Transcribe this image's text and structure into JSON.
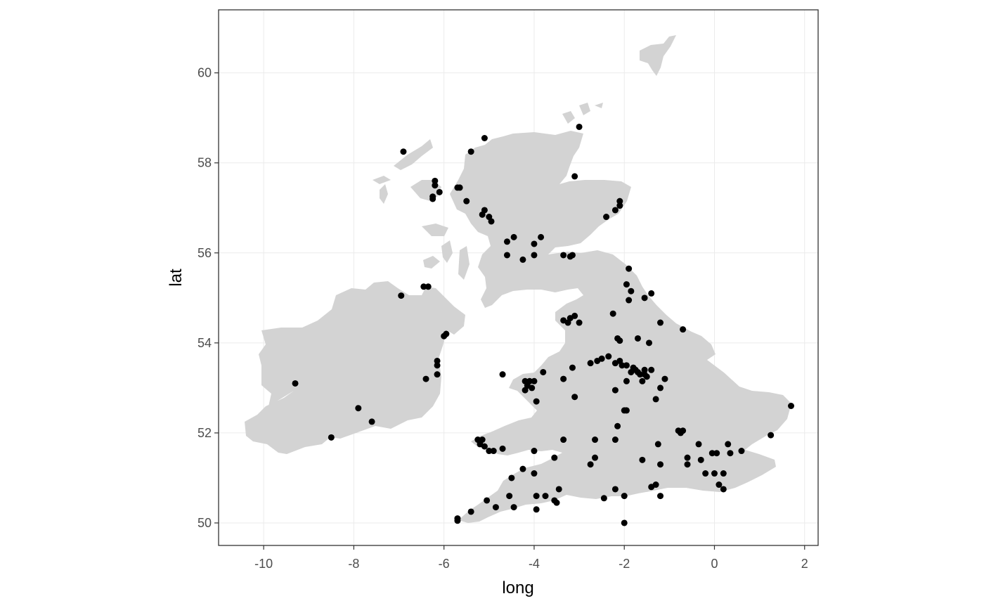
{
  "chart_data": {
    "type": "scatter",
    "title": "",
    "xlabel": "long",
    "ylabel": "lat",
    "xlim": [
      -11,
      2.3
    ],
    "ylim": [
      49.5,
      61.4
    ],
    "x_ticks": [
      -10,
      -8,
      -6,
      -4,
      -2,
      0,
      2
    ],
    "y_ticks": [
      50,
      52,
      54,
      56,
      58,
      60
    ],
    "x_tick_labels": [
      "-10",
      "-8",
      "-6",
      "-4",
      "-2",
      "0",
      "2"
    ],
    "y_tick_labels": [
      "50",
      "52",
      "54",
      "56",
      "58",
      "60"
    ],
    "grid": true,
    "background_polygons": "land outline of Great Britain and Ireland",
    "colors": {
      "land": "#d3d3d3",
      "points": "#000000",
      "panel_border": "#333333",
      "grid": "#ebebeb"
    },
    "points": [
      [
        -6.9,
        58.25
      ],
      [
        -5.4,
        58.25
      ],
      [
        -5.1,
        58.55
      ],
      [
        -3.1,
        57.7
      ],
      [
        -3.0,
        58.8
      ],
      [
        -6.2,
        57.6
      ],
      [
        -6.2,
        57.5
      ],
      [
        -6.1,
        57.35
      ],
      [
        -6.25,
        57.25
      ],
      [
        -6.25,
        57.2
      ],
      [
        -5.7,
        57.45
      ],
      [
        -5.65,
        57.45
      ],
      [
        -5.5,
        57.15
      ],
      [
        -5.1,
        56.95
      ],
      [
        -5.0,
        56.8
      ],
      [
        -5.15,
        56.85
      ],
      [
        -4.95,
        56.7
      ],
      [
        -4.45,
        56.35
      ],
      [
        -4.6,
        56.25
      ],
      [
        -3.85,
        56.35
      ],
      [
        -4.0,
        56.2
      ],
      [
        -4.6,
        55.95
      ],
      [
        -4.0,
        55.95
      ],
      [
        -4.25,
        55.85
      ],
      [
        -3.35,
        55.95
      ],
      [
        -3.15,
        55.95
      ],
      [
        -3.2,
        55.92
      ],
      [
        -2.2,
        56.95
      ],
      [
        -2.1,
        57.15
      ],
      [
        -2.1,
        57.05
      ],
      [
        -2.4,
        56.8
      ],
      [
        -6.95,
        55.05
      ],
      [
        -6.45,
        55.25
      ],
      [
        -6.35,
        55.25
      ],
      [
        -5.95,
        54.2
      ],
      [
        -6.0,
        54.15
      ],
      [
        -6.15,
        53.6
      ],
      [
        -6.15,
        53.5
      ],
      [
        -6.15,
        53.3
      ],
      [
        -6.4,
        53.2
      ],
      [
        -9.3,
        53.1
      ],
      [
        -7.9,
        52.55
      ],
      [
        -7.6,
        52.25
      ],
      [
        -8.5,
        51.9
      ],
      [
        -1.9,
        55.65
      ],
      [
        -1.95,
        55.3
      ],
      [
        -1.85,
        55.15
      ],
      [
        -1.9,
        54.95
      ],
      [
        -1.55,
        55.0
      ],
      [
        -1.4,
        55.1
      ],
      [
        -2.25,
        54.65
      ],
      [
        -3.1,
        54.6
      ],
      [
        -3.2,
        54.55
      ],
      [
        -3.35,
        54.5
      ],
      [
        -3.25,
        54.45
      ],
      [
        -3.0,
        54.45
      ],
      [
        -1.2,
        54.45
      ],
      [
        -0.7,
        54.3
      ],
      [
        -1.7,
        54.1
      ],
      [
        -2.15,
        54.1
      ],
      [
        -2.1,
        54.05
      ],
      [
        -1.45,
        54.0
      ],
      [
        -2.75,
        53.55
      ],
      [
        -2.6,
        53.6
      ],
      [
        -2.5,
        53.65
      ],
      [
        -2.35,
        53.7
      ],
      [
        -2.2,
        53.55
      ],
      [
        -2.1,
        53.6
      ],
      [
        -2.05,
        53.5
      ],
      [
        -1.95,
        53.5
      ],
      [
        -1.8,
        53.45
      ],
      [
        -1.75,
        53.4
      ],
      [
        -1.65,
        53.3
      ],
      [
        -1.55,
        53.3
      ],
      [
        -1.5,
        53.25
      ],
      [
        -1.4,
        53.4
      ],
      [
        -1.85,
        53.35
      ],
      [
        -1.7,
        53.35
      ],
      [
        -1.55,
        53.4
      ],
      [
        -1.6,
        53.15
      ],
      [
        -1.95,
        53.15
      ],
      [
        -1.1,
        53.2
      ],
      [
        -1.2,
        53.0
      ],
      [
        -2.2,
        52.95
      ],
      [
        -1.3,
        52.75
      ],
      [
        -1.95,
        52.5
      ],
      [
        -2.0,
        52.5
      ],
      [
        -3.15,
        53.45
      ],
      [
        -3.8,
        53.35
      ],
      [
        -3.35,
        53.2
      ],
      [
        -4.0,
        53.15
      ],
      [
        -4.1,
        53.15
      ],
      [
        -4.2,
        53.15
      ],
      [
        -4.15,
        53.05
      ],
      [
        -4.05,
        53.0
      ],
      [
        -4.2,
        52.95
      ],
      [
        -3.95,
        52.7
      ],
      [
        -4.7,
        53.3
      ],
      [
        -3.1,
        52.8
      ],
      [
        -0.7,
        52.05
      ],
      [
        -0.8,
        52.05
      ],
      [
        -0.75,
        52.0
      ],
      [
        1.7,
        52.6
      ],
      [
        1.25,
        51.95
      ],
      [
        -2.15,
        52.15
      ],
      [
        -2.2,
        51.85
      ],
      [
        -2.65,
        51.85
      ],
      [
        -1.25,
        51.75
      ],
      [
        -0.35,
        51.75
      ],
      [
        -0.05,
        51.55
      ],
      [
        0.05,
        51.55
      ],
      [
        0.3,
        51.75
      ],
      [
        0.35,
        51.55
      ],
      [
        0.6,
        51.6
      ],
      [
        -0.6,
        51.45
      ],
      [
        -0.3,
        51.4
      ],
      [
        -1.2,
        51.3
      ],
      [
        -1.6,
        51.4
      ],
      [
        -0.6,
        51.3
      ],
      [
        0.0,
        51.1
      ],
      [
        0.2,
        51.1
      ],
      [
        0.1,
        50.85
      ],
      [
        0.2,
        50.75
      ],
      [
        -0.2,
        51.1
      ],
      [
        -1.4,
        50.8
      ],
      [
        -1.3,
        50.85
      ],
      [
        -1.2,
        50.6
      ],
      [
        -2.0,
        50.6
      ],
      [
        -2.2,
        50.75
      ],
      [
        -2.45,
        50.55
      ],
      [
        -2.0,
        50.0
      ],
      [
        -2.65,
        51.45
      ],
      [
        -2.75,
        51.3
      ],
      [
        -3.35,
        51.85
      ],
      [
        -3.55,
        51.45
      ],
      [
        -4.0,
        51.6
      ],
      [
        -4.0,
        51.1
      ],
      [
        -4.25,
        51.2
      ],
      [
        -4.7,
        51.65
      ],
      [
        -4.9,
        51.6
      ],
      [
        -5.0,
        51.6
      ],
      [
        -5.1,
        51.7
      ],
      [
        -5.2,
        51.75
      ],
      [
        -5.25,
        51.85
      ],
      [
        -5.15,
        51.85
      ],
      [
        -4.5,
        51.0
      ],
      [
        -4.55,
        50.6
      ],
      [
        -4.45,
        50.35
      ],
      [
        -4.85,
        50.35
      ],
      [
        -5.05,
        50.5
      ],
      [
        -5.4,
        50.25
      ],
      [
        -5.7,
        50.05
      ],
      [
        -5.7,
        50.1
      ],
      [
        -3.95,
        50.6
      ],
      [
        -3.75,
        50.6
      ],
      [
        -3.95,
        50.3
      ],
      [
        -3.5,
        50.45
      ],
      [
        -3.55,
        50.5
      ],
      [
        -3.45,
        50.75
      ]
    ]
  }
}
